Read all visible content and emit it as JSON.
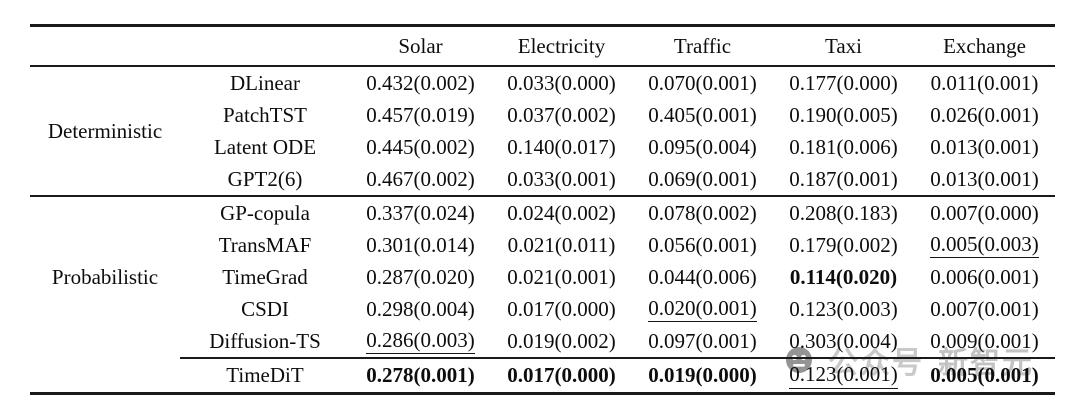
{
  "colors": {
    "rule": "#1a1a1a",
    "text": "#0d0d0d",
    "watermark_gray": "#c9c9c9"
  },
  "table": {
    "headers": {
      "datasets": [
        "Solar",
        "Electricity",
        "Traffic",
        "Taxi",
        "Exchange"
      ]
    },
    "sections": [
      {
        "group": "Deterministic",
        "rows": [
          {
            "model": "DLinear",
            "values": [
              {
                "text": "0.432(0.002)",
                "style": "normal"
              },
              {
                "text": "0.033(0.000)",
                "style": "normal"
              },
              {
                "text": "0.070(0.001)",
                "style": "normal"
              },
              {
                "text": "0.177(0.000)",
                "style": "normal"
              },
              {
                "text": "0.011(0.001)",
                "style": "normal"
              }
            ]
          },
          {
            "model": "PatchTST",
            "values": [
              {
                "text": "0.457(0.019)",
                "style": "normal"
              },
              {
                "text": "0.037(0.002)",
                "style": "normal"
              },
              {
                "text": "0.405(0.001)",
                "style": "normal"
              },
              {
                "text": "0.190(0.005)",
                "style": "normal"
              },
              {
                "text": "0.026(0.001)",
                "style": "normal"
              }
            ]
          },
          {
            "model": "Latent ODE",
            "values": [
              {
                "text": "0.445(0.002)",
                "style": "normal"
              },
              {
                "text": "0.140(0.017)",
                "style": "normal"
              },
              {
                "text": "0.095(0.004)",
                "style": "normal"
              },
              {
                "text": "0.181(0.006)",
                "style": "normal"
              },
              {
                "text": "0.013(0.001)",
                "style": "normal"
              }
            ]
          },
          {
            "model": "GPT2(6)",
            "values": [
              {
                "text": "0.467(0.002)",
                "style": "normal"
              },
              {
                "text": "0.033(0.001)",
                "style": "normal"
              },
              {
                "text": "0.069(0.001)",
                "style": "normal"
              },
              {
                "text": "0.187(0.001)",
                "style": "normal"
              },
              {
                "text": "0.013(0.001)",
                "style": "normal"
              }
            ]
          }
        ]
      },
      {
        "group": "Probabilistic",
        "rows": [
          {
            "model": "GP-copula",
            "values": [
              {
                "text": "0.337(0.024)",
                "style": "normal"
              },
              {
                "text": "0.024(0.002)",
                "style": "normal"
              },
              {
                "text": "0.078(0.002)",
                "style": "normal"
              },
              {
                "text": "0.208(0.183)",
                "style": "normal"
              },
              {
                "text": "0.007(0.000)",
                "style": "normal"
              }
            ]
          },
          {
            "model": "TransMAF",
            "values": [
              {
                "text": "0.301(0.014)",
                "style": "normal"
              },
              {
                "text": "0.021(0.011)",
                "style": "normal"
              },
              {
                "text": "0.056(0.001)",
                "style": "normal"
              },
              {
                "text": "0.179(0.002)",
                "style": "normal"
              },
              {
                "text": "0.005(0.003)",
                "style": "underline"
              }
            ]
          },
          {
            "model": "TimeGrad",
            "values": [
              {
                "text": "0.287(0.020)",
                "style": "normal"
              },
              {
                "text": "0.021(0.001)",
                "style": "normal"
              },
              {
                "text": "0.044(0.006)",
                "style": "normal"
              },
              {
                "text": "0.114(0.020)",
                "style": "bold"
              },
              {
                "text": "0.006(0.001)",
                "style": "normal"
              }
            ]
          },
          {
            "model": "CSDI",
            "values": [
              {
                "text": "0.298(0.004)",
                "style": "normal"
              },
              {
                "text": "0.017(0.000)",
                "style": "normal"
              },
              {
                "text": "0.020(0.001)",
                "style": "underline"
              },
              {
                "text": "0.123(0.003)",
                "style": "normal"
              },
              {
                "text": "0.007(0.001)",
                "style": "normal"
              }
            ]
          },
          {
            "model": "Diffusion-TS",
            "values": [
              {
                "text": "0.286(0.003)",
                "style": "underline"
              },
              {
                "text": "0.019(0.002)",
                "style": "normal"
              },
              {
                "text": "0.097(0.001)",
                "style": "normal"
              },
              {
                "text": "0.303(0.004)",
                "style": "normal"
              },
              {
                "text": "0.009(0.001)",
                "style": "normal"
              }
            ]
          }
        ]
      }
    ],
    "summary_row": {
      "model": "TimeDiT",
      "values": [
        {
          "text": "0.278(0.001)",
          "style": "bold"
        },
        {
          "text": "0.017(0.000)",
          "style": "bold"
        },
        {
          "text": "0.019(0.000)",
          "style": "bold"
        },
        {
          "text": "0.123(0.001)",
          "style": "underline"
        },
        {
          "text": "0.005(0.001)",
          "style": "bold"
        }
      ]
    }
  },
  "watermark": {
    "logo": "robot-face-icon",
    "text_left": "公众号",
    "text_right": "新智元"
  }
}
